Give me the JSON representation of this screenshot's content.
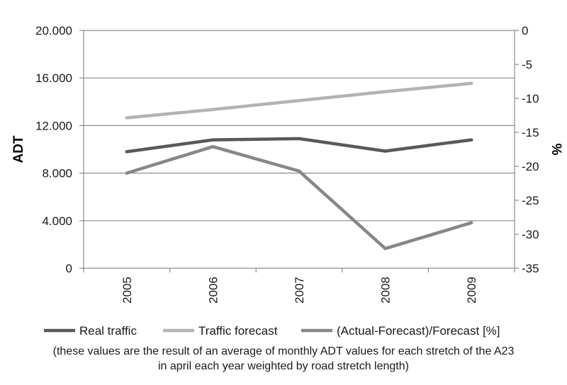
{
  "chart_data": {
    "type": "line",
    "categories": [
      "2005",
      "2006",
      "2007",
      "2008",
      "2009"
    ],
    "y_left": {
      "label": "ADT",
      "range": [
        0,
        20000
      ],
      "ticks": [
        0,
        4000,
        8000,
        12000,
        16000,
        20000
      ],
      "tick_labels": [
        "0",
        "4.000",
        "8.000",
        "12.000",
        "16.000",
        "20.000"
      ]
    },
    "y_right": {
      "label": "%",
      "range": [
        -35,
        0
      ],
      "ticks": [
        0,
        -5,
        -10,
        -15,
        -20,
        -25,
        -30,
        -35
      ],
      "tick_labels": [
        "0",
        "-5",
        "-10",
        "-15",
        "-20",
        "-25",
        "-30",
        "-35"
      ]
    },
    "series": [
      {
        "name": "Real traffic",
        "axis": "left",
        "color": "#595959",
        "values": [
          9800,
          10800,
          10900,
          9850,
          10800
        ]
      },
      {
        "name": "Traffic forecast",
        "axis": "left",
        "color": "#b3b3b3",
        "values": [
          12650,
          13350,
          14100,
          14850,
          15550
        ]
      },
      {
        "name": "(Actual-Forecast)/Forecast [%]",
        "axis": "right",
        "color": "#878787",
        "values": [
          -21.0,
          -17.1,
          -20.7,
          -32.1,
          -28.3
        ]
      }
    ],
    "grid": true,
    "legend_position": "bottom"
  },
  "note": {
    "line1": "(these values are the result of an average of monthly ADT values for each stretch of the A23",
    "line2": "in april each year weighted by road stretch length)"
  }
}
